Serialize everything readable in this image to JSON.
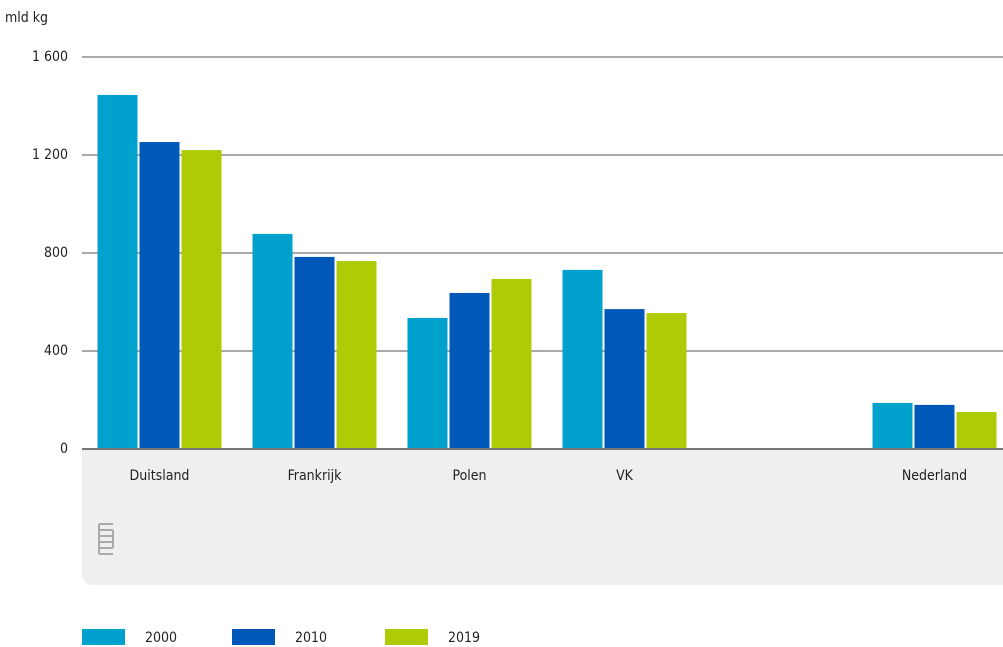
{
  "chart_data": {
    "type": "bar",
    "ylabel": "mld kg",
    "categories": [
      "Duitsland",
      "Frankrijk",
      "Polen",
      "VK",
      null,
      "Nederland"
    ],
    "series": [
      {
        "name": "2000",
        "color": "#00a1cd",
        "values": [
          1445,
          878,
          535,
          731,
          null,
          188
        ]
      },
      {
        "name": "2010",
        "color": "#0058b8",
        "values": [
          1253,
          784,
          637,
          571,
          null,
          180
        ]
      },
      {
        "name": "2019",
        "color": "#afcb05",
        "values": [
          1220,
          767,
          694,
          555,
          null,
          151
        ]
      }
    ],
    "ylim": [
      0,
      1600
    ],
    "yticks": [
      0,
      400,
      800,
      {
        "value": 1200,
        "label": "1 200"
      },
      {
        "value": 1600,
        "label": "1 600"
      }
    ],
    "grid": true,
    "legend": "bottom"
  }
}
